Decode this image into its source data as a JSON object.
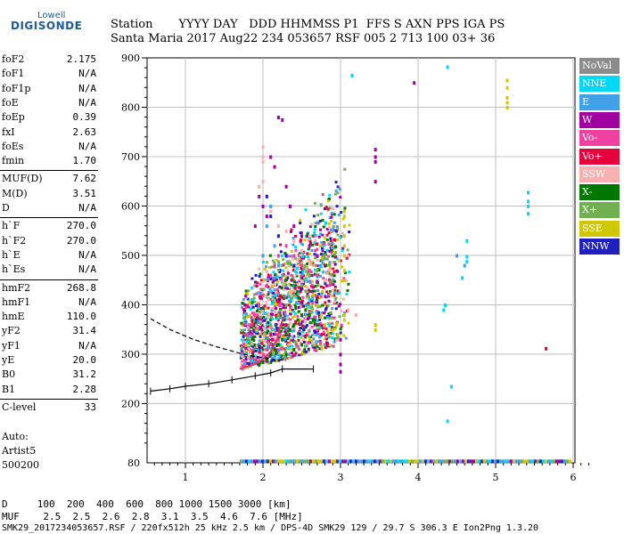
{
  "logo": {
    "top": "Lowell",
    "main": "DIGISONDE"
  },
  "header": {
    "line1": "Station       YYYY DAY   DDD HHMMSS P1  FFS S AXN PPS IGA PS",
    "line2": "Santa Maria 2017 Aug22 234 053657 RSF 005 2 713 100 03+ 36"
  },
  "params_group1": [
    {
      "name": "foF2",
      "value": "2.175"
    },
    {
      "name": "foF1",
      "value": "N/A"
    },
    {
      "name": "foF1p",
      "value": "N/A"
    },
    {
      "name": "foE",
      "value": "N/A"
    },
    {
      "name": "foEp",
      "value": "0.39"
    },
    {
      "name": "fxI",
      "value": "2.63"
    },
    {
      "name": "foEs",
      "value": "N/A"
    },
    {
      "name": "fmin",
      "value": "1.70"
    }
  ],
  "params_group2": [
    {
      "name": "MUF(D)",
      "value": "7.62"
    },
    {
      "name": "M(D)",
      "value": "3.51"
    },
    {
      "name": "D",
      "value": "N/A"
    }
  ],
  "params_group3": [
    {
      "name": "h`F",
      "value": "270.0"
    },
    {
      "name": "h`F2",
      "value": "270.0"
    },
    {
      "name": "h`E",
      "value": "N/A"
    },
    {
      "name": "h`Es",
      "value": "N/A"
    }
  ],
  "params_group4": [
    {
      "name": "hmF2",
      "value": "268.8"
    },
    {
      "name": "hmF1",
      "value": "N/A"
    },
    {
      "name": "hmE",
      "value": "110.0"
    },
    {
      "name": "yF2",
      "value": "31.4"
    },
    {
      "name": "yF1",
      "value": "N/A"
    },
    {
      "name": "yE",
      "value": "20.0"
    },
    {
      "name": "B0",
      "value": "31.2"
    },
    {
      "name": "B1",
      "value": "2.28"
    }
  ],
  "params_group5": [
    {
      "name": "C-level",
      "value": "33"
    }
  ],
  "auto": {
    "line1": "Auto:",
    "line2": "Artist5",
    "line3": "500200"
  },
  "legend": [
    {
      "label": "NoVal",
      "color": "#8c8c8c"
    },
    {
      "label": "NNE",
      "color": "#00d8f8"
    },
    {
      "label": "E",
      "color": "#40a0e8"
    },
    {
      "label": "W",
      "color": "#a000a0"
    },
    {
      "label": "Vo-",
      "color": "#f040a0"
    },
    {
      "label": "Vo+",
      "color": "#e8003c"
    },
    {
      "label": "SSW",
      "color": "#f8b0b0"
    },
    {
      "label": "X-",
      "color": "#007800"
    },
    {
      "label": "X+",
      "color": "#70b050"
    },
    {
      "label": "SSE",
      "color": "#d0c800"
    },
    {
      "label": "NNW",
      "color": "#2020c0"
    }
  ],
  "bottom": {
    "d_line": "D     100  200  400  600  800 1000 1500 3000 [km]",
    "muf_line": "MUF    2.5  2.5  2.6  2.8  3.1  3.5  4.6  7.6 [MHz]",
    "footer": "SMK29_2017234053657.RSF / 220fx512h 25 kHz 2.5 km / DPS-4D SMK29 129 / 29.7 S 306.3 E Ion2Png 1.3.20"
  },
  "chart_data": {
    "type": "scatter",
    "xlabel": "",
    "ylabel": "",
    "xlim": [
      0.55,
      6.2
    ],
    "ylim": [
      80,
      900
    ],
    "x_ticks": [
      1,
      2,
      3,
      4,
      5,
      6
    ],
    "y_ticks": [
      200,
      300,
      400,
      500,
      600,
      700,
      800,
      900
    ],
    "y_tick_labels": [
      "200",
      "300",
      "400",
      "500",
      "600",
      "700",
      "800",
      "900"
    ],
    "y_extra_label": "80",
    "x_tick_labels": [
      "1",
      "2",
      "3",
      "4",
      "5",
      "6"
    ],
    "grid": true,
    "series": [
      {
        "name": "NNE",
        "color": "#00d8f8",
        "points": [
          [
            3.15,
            865
          ],
          [
            4.38,
            882
          ],
          [
            5.42,
            628
          ],
          [
            5.42,
            610
          ],
          [
            5.42,
            600
          ],
          [
            5.42,
            585
          ],
          [
            4.57,
            455
          ],
          [
            4.63,
            498
          ],
          [
            4.63,
            488
          ],
          [
            4.63,
            530
          ],
          [
            4.43,
            235
          ],
          [
            4.38,
            165
          ],
          [
            4.35,
            400
          ],
          [
            4.33,
            390
          ]
        ]
      },
      {
        "name": "E",
        "color": "#40a0e8",
        "points": [
          [
            2.05,
            560
          ],
          [
            2.1,
            600
          ],
          [
            2.15,
            520
          ],
          [
            2.2,
            480
          ],
          [
            2.25,
            460
          ],
          [
            2.3,
            440
          ],
          [
            2.0,
            500
          ],
          [
            2.15,
            455
          ],
          [
            2.3,
            500
          ],
          [
            4.5,
            500
          ],
          [
            4.6,
            480
          ]
        ]
      },
      {
        "name": "W",
        "color": "#a000a0",
        "points": [
          [
            2.2,
            780
          ],
          [
            2.25,
            775
          ],
          [
            2.1,
            700
          ],
          [
            2.15,
            680
          ],
          [
            2.3,
            640
          ],
          [
            2.35,
            600
          ],
          [
            2.4,
            560
          ],
          [
            2.5,
            540
          ],
          [
            2.6,
            520
          ],
          [
            2.7,
            500
          ],
          [
            2.8,
            480
          ],
          [
            3.45,
            715
          ],
          [
            3.45,
            700
          ],
          [
            3.45,
            690
          ],
          [
            3.45,
            650
          ],
          [
            3.95,
            850
          ],
          [
            1.95,
            620
          ],
          [
            2.0,
            600
          ],
          [
            2.05,
            580
          ],
          [
            1.9,
            560
          ],
          [
            3.0,
            330
          ],
          [
            3.0,
            300
          ],
          [
            3.0,
            280
          ],
          [
            3.0,
            265
          ]
        ]
      },
      {
        "name": "Vo-",
        "color": "#f040a0",
        "points": [
          [
            1.75,
            320
          ],
          [
            1.8,
            340
          ],
          [
            1.85,
            360
          ],
          [
            1.9,
            380
          ],
          [
            1.95,
            400
          ],
          [
            2.0,
            420
          ],
          [
            2.05,
            440
          ],
          [
            2.1,
            460
          ],
          [
            2.15,
            480
          ],
          [
            2.2,
            500
          ],
          [
            2.3,
            520
          ],
          [
            2.4,
            500
          ],
          [
            2.5,
            480
          ],
          [
            2.6,
            470
          ],
          [
            2.7,
            460
          ],
          [
            2.8,
            450
          ],
          [
            2.0,
            300
          ],
          [
            2.05,
            310
          ],
          [
            2.1,
            320
          ],
          [
            2.2,
            330
          ]
        ]
      },
      {
        "name": "Vo+",
        "color": "#e8003c",
        "points": [
          [
            2.1,
            340
          ],
          [
            2.2,
            350
          ],
          [
            2.3,
            360
          ],
          [
            5.65,
            312
          ]
        ]
      },
      {
        "name": "SSW",
        "color": "#f8b0b0",
        "points": [
          [
            2.0,
            720
          ],
          [
            2.0,
            700
          ],
          [
            2.0,
            690
          ],
          [
            2.0,
            650
          ],
          [
            1.95,
            640
          ],
          [
            2.1,
            590
          ],
          [
            2.2,
            560
          ],
          [
            2.3,
            550
          ],
          [
            2.4,
            530
          ],
          [
            2.5,
            510
          ],
          [
            2.6,
            490
          ],
          [
            2.7,
            470
          ],
          [
            2.8,
            450
          ],
          [
            2.9,
            430
          ],
          [
            3.1,
            390
          ],
          [
            3.2,
            380
          ]
        ]
      },
      {
        "name": "X-",
        "color": "#007800",
        "points": [
          [
            1.95,
            280
          ],
          [
            2.0,
            285
          ],
          [
            2.05,
            290
          ],
          [
            2.1,
            300
          ],
          [
            2.15,
            310
          ],
          [
            2.2,
            320
          ],
          [
            2.25,
            330
          ],
          [
            2.3,
            340
          ],
          [
            2.35,
            350
          ],
          [
            2.4,
            360
          ],
          [
            2.45,
            370
          ],
          [
            2.5,
            380
          ],
          [
            2.55,
            390
          ],
          [
            2.6,
            380
          ],
          [
            2.65,
            370
          ],
          [
            2.7,
            360
          ],
          [
            2.3,
            300
          ],
          [
            2.4,
            310
          ],
          [
            2.5,
            320
          ]
        ]
      },
      {
        "name": "X+",
        "color": "#70b050",
        "points": [
          [
            2.1,
            360
          ],
          [
            2.2,
            380
          ],
          [
            2.3,
            400
          ],
          [
            2.4,
            420
          ],
          [
            2.5,
            440
          ],
          [
            2.6,
            460
          ],
          [
            2.7,
            470
          ]
        ]
      },
      {
        "name": "SSE",
        "color": "#d0c800",
        "points": [
          [
            3.05,
            590
          ],
          [
            3.05,
            580
          ],
          [
            3.05,
            560
          ],
          [
            3.05,
            540
          ],
          [
            3.05,
            520
          ],
          [
            3.05,
            500
          ],
          [
            3.05,
            470
          ],
          [
            3.05,
            450
          ],
          [
            3.05,
            380
          ],
          [
            3.05,
            370
          ],
          [
            2.95,
            360
          ],
          [
            2.9,
            350
          ],
          [
            2.85,
            340
          ],
          [
            2.8,
            360
          ],
          [
            2.75,
            380
          ],
          [
            2.7,
            400
          ],
          [
            2.65,
            420
          ],
          [
            5.15,
            855
          ],
          [
            5.15,
            840
          ],
          [
            5.15,
            820
          ],
          [
            5.15,
            810
          ],
          [
            5.15,
            800
          ],
          [
            3.45,
            360
          ],
          [
            3.45,
            350
          ]
        ]
      },
      {
        "name": "NNW",
        "color": "#2020c0",
        "points": [
          [
            2.05,
            620
          ],
          [
            2.1,
            580
          ],
          [
            2.2,
            540
          ],
          [
            2.3,
            500
          ],
          [
            2.4,
            480
          ]
        ]
      }
    ],
    "traces": [
      {
        "name": "dashed",
        "color": "#000000",
        "style": "dashed",
        "points": [
          [
            0.55,
            372
          ],
          [
            0.8,
            350
          ],
          [
            1.1,
            330
          ],
          [
            1.4,
            315
          ],
          [
            1.7,
            302
          ],
          [
            1.9,
            295
          ],
          [
            2.1,
            290
          ],
          [
            2.3,
            287
          ]
        ]
      },
      {
        "name": "profile",
        "color": "#000000",
        "style": "solid",
        "points": [
          [
            0.55,
            225
          ],
          [
            0.8,
            230
          ],
          [
            1.0,
            235
          ],
          [
            1.3,
            240
          ],
          [
            1.6,
            248
          ],
          [
            1.9,
            256
          ],
          [
            2.1,
            262
          ],
          [
            2.25,
            270
          ],
          [
            2.65,
            270
          ]
        ]
      },
      {
        "name": "virtual",
        "color": "#e83070",
        "style": "solid",
        "points": [
          [
            1.7,
            270
          ],
          [
            1.8,
            275
          ],
          [
            1.9,
            280
          ],
          [
            2.0,
            290
          ],
          [
            2.1,
            305
          ],
          [
            2.18,
            330
          ],
          [
            2.22,
            355
          ],
          [
            2.28,
            380
          ]
        ]
      }
    ],
    "bottom_band": {
      "y": 83,
      "x_start": 1.7,
      "x_end": 5.95
    }
  }
}
